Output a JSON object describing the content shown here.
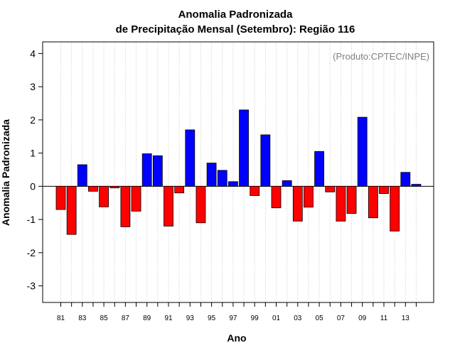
{
  "chart_data": {
    "type": "bar",
    "title": "Anomalia Padronizada",
    "subtitle": "de Precipitação Mensal (Setembro): Região 116",
    "xlabel": "Ano",
    "ylabel": "Anomalia Padronizada",
    "credit": "(Produto:CPTEC/INPE)",
    "ylim": [
      -3.5,
      4.35
    ],
    "yticks": [
      "4",
      "3",
      "2",
      "1",
      "0",
      "-1",
      "-2",
      "-3"
    ],
    "ytick_values": [
      4,
      3,
      2,
      1,
      0,
      -1,
      -2,
      -3
    ],
    "categories": [
      "81",
      "82",
      "83",
      "84",
      "85",
      "86",
      "87",
      "88",
      "89",
      "90",
      "91",
      "92",
      "93",
      "94",
      "95",
      "96",
      "97",
      "98",
      "99",
      "00",
      "01",
      "02",
      "03",
      "04",
      "05",
      "06",
      "07",
      "08",
      "09",
      "10",
      "11",
      "12",
      "13",
      "14"
    ],
    "xtick_labels": [
      "81",
      "83",
      "85",
      "87",
      "89",
      "91",
      "93",
      "95",
      "97",
      "99",
      "01",
      "03",
      "05",
      "07",
      "09",
      "11",
      "13"
    ],
    "values": [
      -0.7,
      -1.45,
      0.65,
      -0.15,
      -0.62,
      -0.05,
      -1.22,
      -0.75,
      0.98,
      0.92,
      -1.2,
      -0.2,
      1.7,
      -1.1,
      0.7,
      0.48,
      0.14,
      2.3,
      -0.28,
      1.55,
      -0.65,
      0.17,
      -1.05,
      -0.63,
      1.05,
      -0.17,
      -1.05,
      -0.82,
      2.08,
      -0.95,
      -0.22,
      -1.35,
      0.42,
      0.06
    ],
    "grid": "vertical dotted",
    "colors": {
      "positive": "#0000ff",
      "negative": "#ff0000"
    }
  }
}
